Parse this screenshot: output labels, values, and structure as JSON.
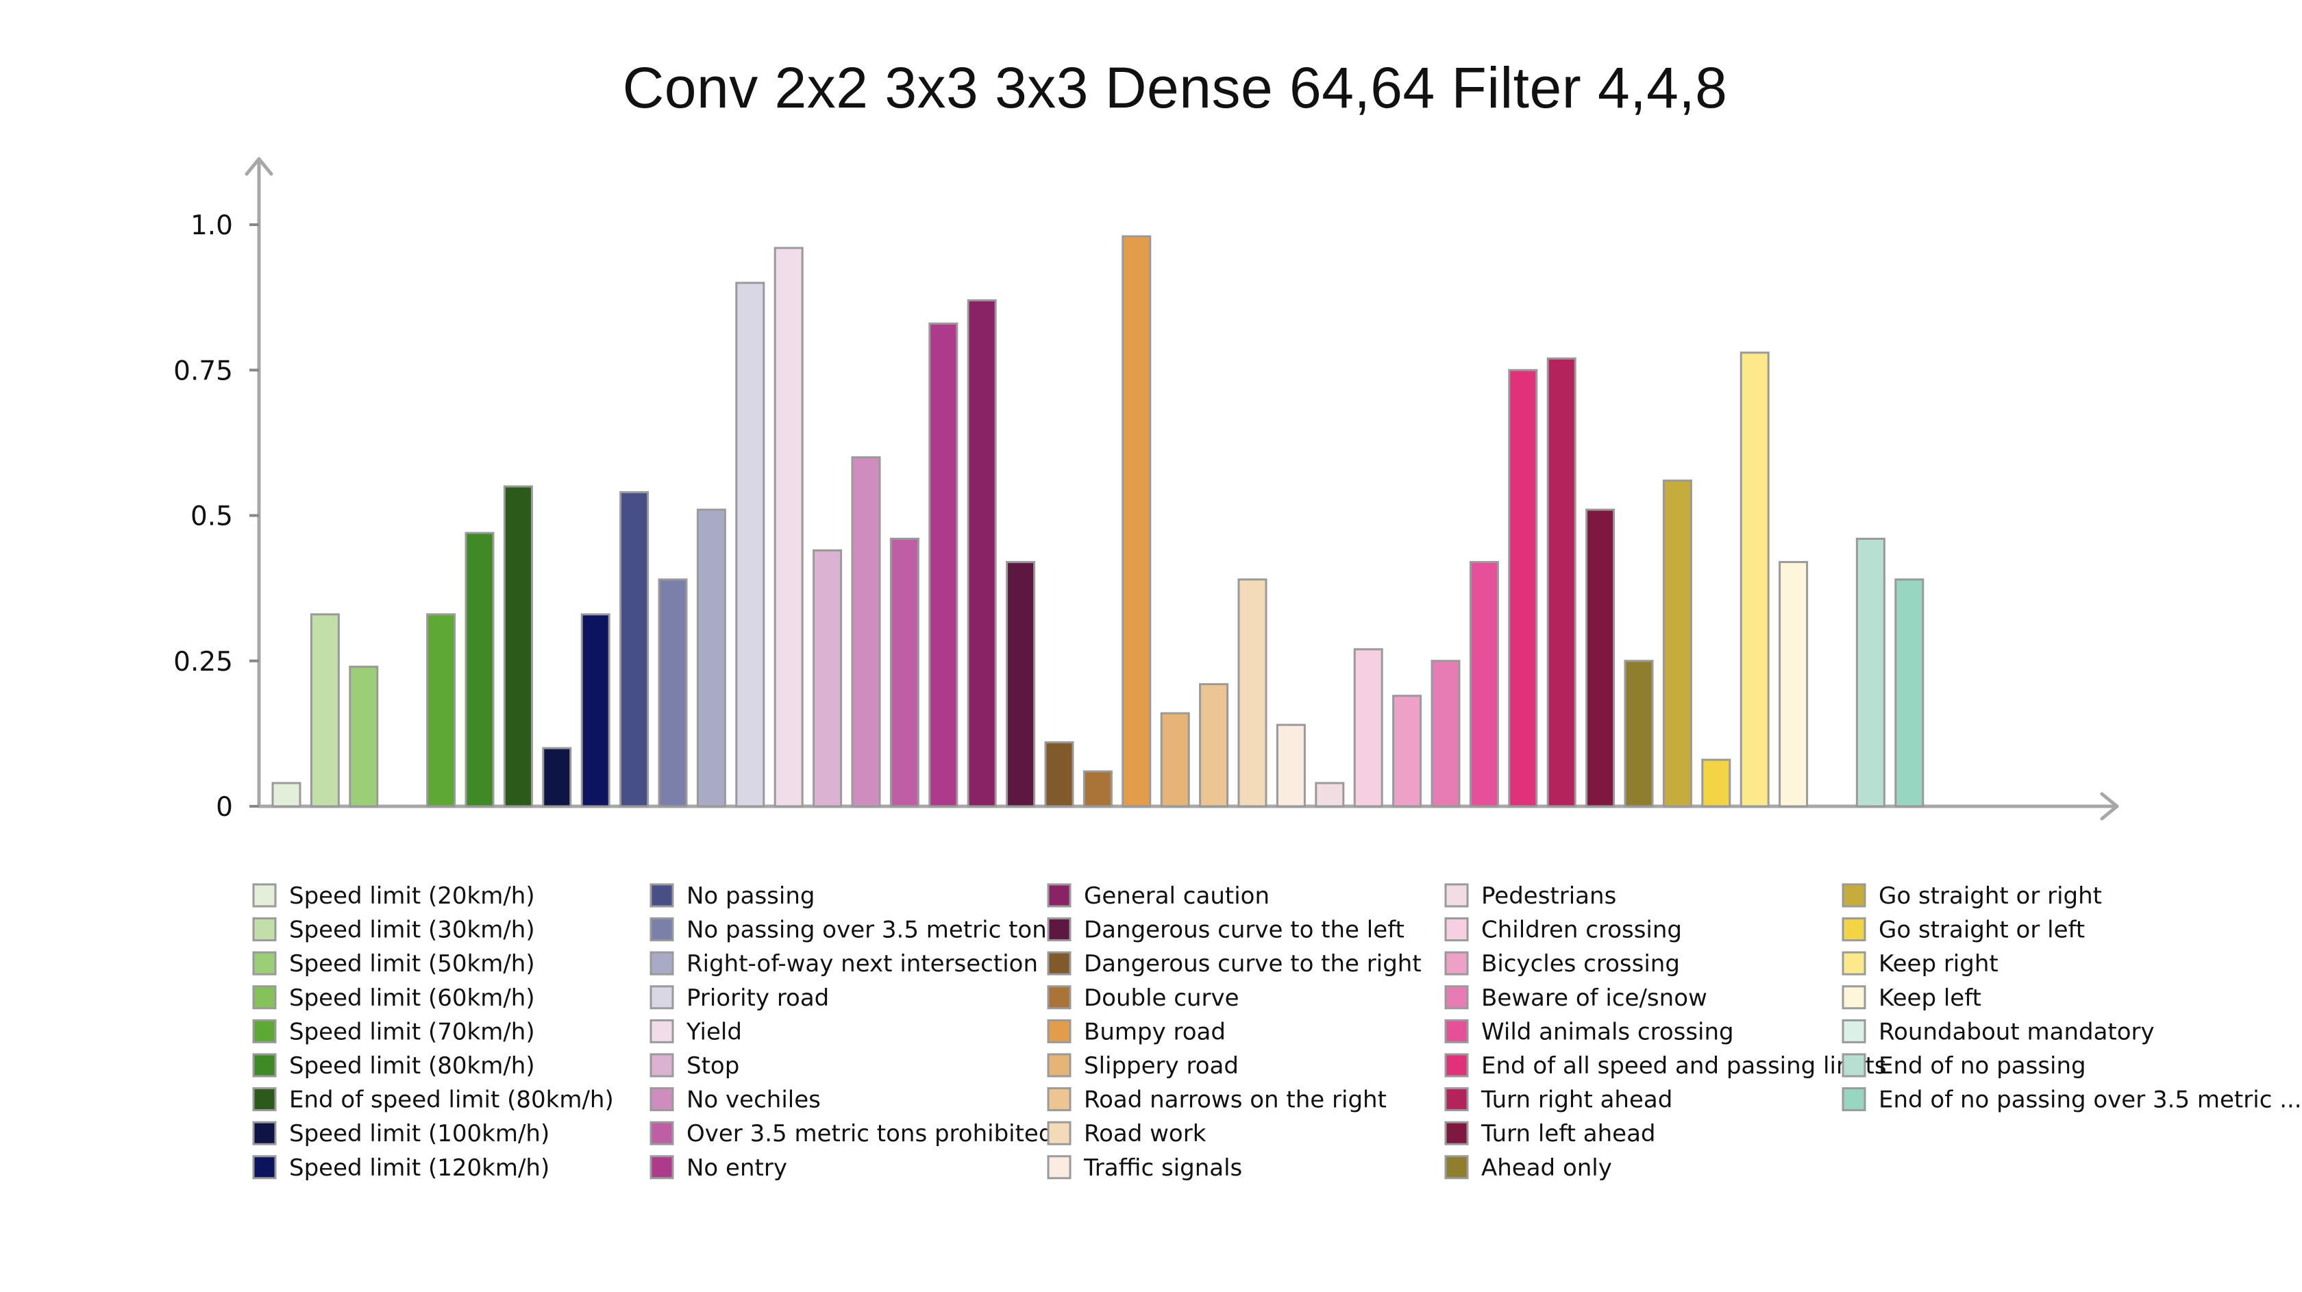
{
  "chart_data": {
    "type": "bar",
    "title": "Conv 2x2 3x3 3x3 Dense 64,64 Filter 4,4,8",
    "xlabel": "",
    "ylabel": "",
    "ylim": [
      0,
      1.0
    ],
    "yticks": [
      {
        "value": 0,
        "label": "0"
      },
      {
        "value": 0.25,
        "label": "0.25"
      },
      {
        "value": 0.5,
        "label": "0.5"
      },
      {
        "value": 0.75,
        "label": "0.75"
      },
      {
        "value": 1.0,
        "label": "1.0"
      }
    ],
    "grid": false,
    "legend_placement": "bottom",
    "categories": [
      "Speed limit (20km/h)",
      "Speed limit (30km/h)",
      "Speed limit (50km/h)",
      "Speed limit (60km/h)",
      "Speed limit (70km/h)",
      "Speed limit (80km/h)",
      "End of speed limit (80km/h)",
      "Speed limit (100km/h)",
      "Speed limit (120km/h)",
      "No passing",
      "No passing over 3.5 metric tons",
      "Right-of-way next intersection",
      "Priority road",
      "Yield",
      "Stop",
      "No vechiles",
      "Over 3.5 metric tons prohibited",
      "No entry",
      "General caution",
      "Dangerous curve to the left",
      "Dangerous curve to the right",
      "Double curve",
      "Bumpy road",
      "Slippery road",
      "Road narrows on the right",
      "Road work",
      "Traffic signals",
      "Pedestrians",
      "Children crossing",
      "Bicycles crossing",
      "Beware of ice/snow",
      "Wild animals crossing",
      "End of all speed and passing limits",
      "Turn right ahead",
      "Turn left ahead",
      "Ahead only",
      "Go straight or right",
      "Go straight or left",
      "Keep right",
      "Keep left",
      "Roundabout mandatory",
      "End of no passing",
      "End of no passing over 3.5 metric ..."
    ],
    "values": [
      0.04,
      0.33,
      0.24,
      0.0,
      0.33,
      0.47,
      0.55,
      0.1,
      0.33,
      0.54,
      0.39,
      0.51,
      0.9,
      0.96,
      0.44,
      0.6,
      0.46,
      0.83,
      0.87,
      0.42,
      0.11,
      0.06,
      0.98,
      0.16,
      0.21,
      0.39,
      0.14,
      0.04,
      0.27,
      0.19,
      0.25,
      0.42,
      0.75,
      0.77,
      0.51,
      0.25,
      0.56,
      0.08,
      0.78,
      0.42,
      0.0,
      0.46,
      0.39
    ],
    "colors": [
      "#e3efd8",
      "#c2dfaa",
      "#9cce78",
      "#86c25a",
      "#5ea936",
      "#3f8a26",
      "#2c5a1b",
      "#0e1446",
      "#0b145c",
      "#474f86",
      "#7a80a9",
      "#a9abc6",
      "#d8d7e3",
      "#f1dde9",
      "#dcb2d2",
      "#cf8cbf",
      "#c05ea5",
      "#ad3a8b",
      "#8a2366",
      "#5d1842",
      "#815a2b",
      "#aa7338",
      "#e39d4a",
      "#e7b478",
      "#edc593",
      "#f3dbb9",
      "#faece0",
      "#f1dde2",
      "#f6cfe3",
      "#eda1c7",
      "#e77bb4",
      "#e6509a",
      "#e0317a",
      "#b5235c",
      "#7e1840",
      "#8e7e2e",
      "#c5ac3c",
      "#f2d445",
      "#fbe98b",
      "#fdf6da",
      "#dbf0e6",
      "#b7e0d2",
      "#98d6c2"
    ]
  }
}
